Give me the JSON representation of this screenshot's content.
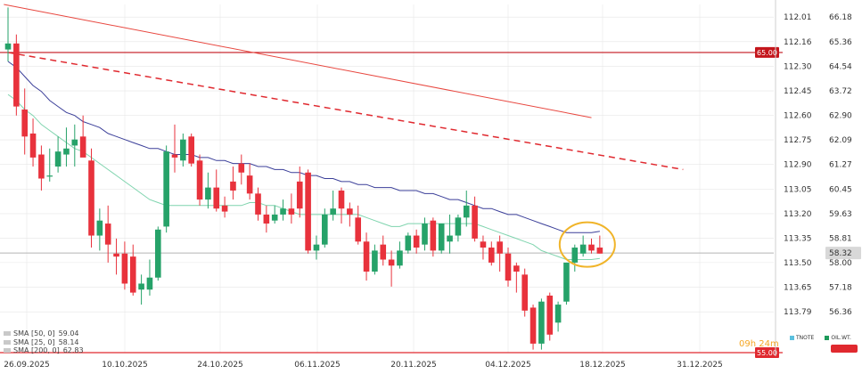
{
  "chart_data": {
    "type": "candlestick",
    "x_axis_ticks": [
      "26.09.2025",
      "10.10.2025",
      "24.10.2025",
      "06.11.2025",
      "20.11.2025",
      "04.12.2025",
      "18.12.2025",
      "31.12.2025"
    ],
    "right_axis_ticks": [
      "66.18",
      "65.36",
      "64.54",
      "63.72",
      "62.90",
      "62.09",
      "61.27",
      "60.45",
      "59.63",
      "58.81",
      "58.00",
      "57.18",
      "56.36"
    ],
    "left_axis_ticks": [
      "112.01",
      "112.16",
      "112.30",
      "112.45",
      "112.60",
      "112.75",
      "112.90",
      "113.05",
      "113.20",
      "113.35",
      "113.50",
      "113.65",
      "113.79"
    ],
    "price_range": [
      55.0,
      66.6
    ],
    "candles": [
      {
        "o": 65.1,
        "h": 66.5,
        "l": 64.7,
        "c": 65.3
      },
      {
        "o": 65.3,
        "h": 65.6,
        "l": 62.9,
        "c": 63.2
      },
      {
        "o": 63.1,
        "h": 63.8,
        "l": 61.6,
        "c": 62.2
      },
      {
        "o": 62.3,
        "h": 62.8,
        "l": 61.2,
        "c": 61.5
      },
      {
        "o": 61.6,
        "h": 61.9,
        "l": 60.4,
        "c": 60.8
      },
      {
        "o": 60.9,
        "h": 61.8,
        "l": 60.7,
        "c": 60.9
      },
      {
        "o": 61.2,
        "h": 62.2,
        "l": 61.0,
        "c": 61.7
      },
      {
        "o": 61.6,
        "h": 62.5,
        "l": 61.2,
        "c": 61.8
      },
      {
        "o": 61.9,
        "h": 62.6,
        "l": 61.2,
        "c": 62.1
      },
      {
        "o": 62.2,
        "h": 62.9,
        "l": 61.6,
        "c": 61.5
      },
      {
        "o": 61.4,
        "h": 61.8,
        "l": 58.5,
        "c": 58.9
      },
      {
        "o": 58.9,
        "h": 59.8,
        "l": 58.4,
        "c": 59.4
      },
      {
        "o": 59.3,
        "h": 59.9,
        "l": 58.0,
        "c": 58.6
      },
      {
        "o": 58.3,
        "h": 58.8,
        "l": 57.6,
        "c": 58.2
      },
      {
        "o": 58.3,
        "h": 58.7,
        "l": 57.1,
        "c": 57.3
      },
      {
        "o": 58.2,
        "h": 58.6,
        "l": 56.9,
        "c": 57.0
      },
      {
        "o": 57.1,
        "h": 57.6,
        "l": 56.6,
        "c": 57.3
      },
      {
        "o": 57.1,
        "h": 58.1,
        "l": 56.9,
        "c": 57.5
      },
      {
        "o": 57.5,
        "h": 59.2,
        "l": 57.4,
        "c": 59.1
      },
      {
        "o": 59.2,
        "h": 61.9,
        "l": 59.0,
        "c": 61.7
      },
      {
        "o": 61.6,
        "h": 62.6,
        "l": 61.0,
        "c": 61.5
      },
      {
        "o": 61.4,
        "h": 62.3,
        "l": 61.2,
        "c": 62.1
      },
      {
        "o": 62.2,
        "h": 62.3,
        "l": 61.2,
        "c": 61.3
      },
      {
        "o": 61.4,
        "h": 61.6,
        "l": 59.9,
        "c": 60.1
      },
      {
        "o": 60.1,
        "h": 61.0,
        "l": 59.8,
        "c": 60.5
      },
      {
        "o": 60.5,
        "h": 61.1,
        "l": 59.7,
        "c": 59.8
      },
      {
        "o": 59.9,
        "h": 60.2,
        "l": 59.5,
        "c": 59.7
      },
      {
        "o": 60.7,
        "h": 61.2,
        "l": 60.1,
        "c": 60.4
      },
      {
        "o": 61.3,
        "h": 61.6,
        "l": 60.6,
        "c": 61.0
      },
      {
        "o": 60.9,
        "h": 61.3,
        "l": 60.1,
        "c": 60.3
      },
      {
        "o": 60.3,
        "h": 60.5,
        "l": 59.4,
        "c": 59.6
      },
      {
        "o": 59.6,
        "h": 59.9,
        "l": 59.0,
        "c": 59.3
      },
      {
        "o": 59.4,
        "h": 59.9,
        "l": 59.3,
        "c": 59.6
      },
      {
        "o": 59.6,
        "h": 60.1,
        "l": 59.4,
        "c": 59.8
      },
      {
        "o": 59.8,
        "h": 60.3,
        "l": 59.3,
        "c": 59.6
      },
      {
        "o": 60.7,
        "h": 61.2,
        "l": 59.5,
        "c": 59.8
      },
      {
        "o": 61.0,
        "h": 61.1,
        "l": 58.3,
        "c": 58.4
      },
      {
        "o": 58.4,
        "h": 58.9,
        "l": 58.1,
        "c": 58.6
      },
      {
        "o": 58.6,
        "h": 59.8,
        "l": 58.5,
        "c": 59.6
      },
      {
        "o": 59.6,
        "h": 60.4,
        "l": 59.4,
        "c": 59.8
      },
      {
        "o": 60.4,
        "h": 60.5,
        "l": 59.3,
        "c": 59.8
      },
      {
        "o": 59.8,
        "h": 60.0,
        "l": 59.2,
        "c": 59.6
      },
      {
        "o": 59.5,
        "h": 59.9,
        "l": 58.6,
        "c": 58.7
      },
      {
        "o": 58.7,
        "h": 59.0,
        "l": 57.4,
        "c": 57.7
      },
      {
        "o": 57.7,
        "h": 58.6,
        "l": 57.6,
        "c": 58.4
      },
      {
        "o": 58.6,
        "h": 58.9,
        "l": 57.9,
        "c": 58.1
      },
      {
        "o": 58.1,
        "h": 58.4,
        "l": 57.2,
        "c": 57.9
      },
      {
        "o": 57.9,
        "h": 58.7,
        "l": 57.8,
        "c": 58.4
      },
      {
        "o": 58.4,
        "h": 59.0,
        "l": 58.3,
        "c": 58.9
      },
      {
        "o": 58.9,
        "h": 59.1,
        "l": 58.3,
        "c": 58.5
      },
      {
        "o": 58.6,
        "h": 59.5,
        "l": 58.4,
        "c": 59.3
      },
      {
        "o": 59.4,
        "h": 59.5,
        "l": 58.2,
        "c": 58.4
      },
      {
        "o": 58.4,
        "h": 59.3,
        "l": 58.3,
        "c": 59.3
      },
      {
        "o": 58.7,
        "h": 59.6,
        "l": 58.3,
        "c": 58.9
      },
      {
        "o": 58.9,
        "h": 59.6,
        "l": 58.7,
        "c": 59.5
      },
      {
        "o": 59.5,
        "h": 60.4,
        "l": 59.2,
        "c": 59.9
      },
      {
        "o": 59.9,
        "h": 60.2,
        "l": 58.7,
        "c": 58.8
      },
      {
        "o": 58.7,
        "h": 58.9,
        "l": 58.1,
        "c": 58.5
      },
      {
        "o": 58.5,
        "h": 58.7,
        "l": 57.9,
        "c": 58.0
      },
      {
        "o": 58.7,
        "h": 58.9,
        "l": 57.7,
        "c": 58.3
      },
      {
        "o": 58.3,
        "h": 58.5,
        "l": 57.2,
        "c": 57.4
      },
      {
        "o": 57.9,
        "h": 58.0,
        "l": 57.0,
        "c": 57.7
      },
      {
        "o": 57.6,
        "h": 57.8,
        "l": 56.2,
        "c": 56.4
      },
      {
        "o": 56.5,
        "h": 56.6,
        "l": 55.1,
        "c": 55.3
      },
      {
        "o": 55.3,
        "h": 56.8,
        "l": 55.1,
        "c": 56.7
      },
      {
        "o": 56.9,
        "h": 57.0,
        "l": 55.4,
        "c": 55.6
      },
      {
        "o": 56.0,
        "h": 56.7,
        "l": 55.7,
        "c": 56.6
      },
      {
        "o": 56.7,
        "h": 58.0,
        "l": 56.6,
        "c": 58.0
      },
      {
        "o": 58.0,
        "h": 58.6,
        "l": 57.7,
        "c": 58.5
      },
      {
        "o": 58.3,
        "h": 58.9,
        "l": 58.2,
        "c": 58.6
      },
      {
        "o": 58.6,
        "h": 58.8,
        "l": 58.3,
        "c": 58.4
      },
      {
        "o": 58.5,
        "h": 58.9,
        "l": 58.3,
        "c": 58.3
      }
    ],
    "current_price": 58.32,
    "horizontal_levels": [
      {
        "value": 65.0,
        "label": "65.00",
        "color": "#c4161c"
      },
      {
        "value": 55.0,
        "label": "55.00",
        "color": "#e0292f"
      }
    ],
    "series": [
      {
        "name": "SMA [50, 0]",
        "value_label": "59.04",
        "color": "#3b3f99",
        "values": [
          64.7,
          64.5,
          64.2,
          63.9,
          63.7,
          63.4,
          63.2,
          63.0,
          62.9,
          62.7,
          62.6,
          62.5,
          62.3,
          62.2,
          62.1,
          62.0,
          61.9,
          61.8,
          61.8,
          61.7,
          61.6,
          61.6,
          61.6,
          61.5,
          61.5,
          61.4,
          61.4,
          61.3,
          61.3,
          61.3,
          61.2,
          61.2,
          61.1,
          61.1,
          61.0,
          61.0,
          60.9,
          60.9,
          60.8,
          60.8,
          60.7,
          60.7,
          60.6,
          60.6,
          60.5,
          60.5,
          60.5,
          60.4,
          60.4,
          60.4,
          60.3,
          60.3,
          60.2,
          60.1,
          60.1,
          60.0,
          59.9,
          59.8,
          59.8,
          59.7,
          59.6,
          59.6,
          59.5,
          59.4,
          59.3,
          59.2,
          59.1,
          59.0,
          59.0,
          59.0,
          59.0,
          59.04
        ]
      },
      {
        "name": "SMA [25, 0]",
        "value_label": "58.14",
        "color": "#7fd4ae",
        "values": [
          63.6,
          63.4,
          63.1,
          62.9,
          62.6,
          62.4,
          62.2,
          62.0,
          61.8,
          61.7,
          61.5,
          61.3,
          61.1,
          60.9,
          60.7,
          60.5,
          60.3,
          60.1,
          60.0,
          59.9,
          59.9,
          59.9,
          59.9,
          59.9,
          59.9,
          59.9,
          59.9,
          59.9,
          59.9,
          60.0,
          60.0,
          59.9,
          59.9,
          59.8,
          59.7,
          59.6,
          59.6,
          59.6,
          59.6,
          59.6,
          59.6,
          59.6,
          59.6,
          59.5,
          59.4,
          59.3,
          59.2,
          59.2,
          59.3,
          59.3,
          59.3,
          59.3,
          59.3,
          59.3,
          59.3,
          59.3,
          59.3,
          59.2,
          59.1,
          59.0,
          58.9,
          58.8,
          58.7,
          58.6,
          58.4,
          58.3,
          58.2,
          58.1,
          58.1,
          58.1,
          58.1,
          58.14
        ]
      },
      {
        "name": "SMA [200, 0]",
        "value_label": "62.83",
        "color": "#e8473f"
      }
    ],
    "sma200_points": [
      [
        -0.5,
        66.6
      ],
      [
        70,
        62.83
      ]
    ],
    "trendline": {
      "start": [
        0,
        65.0
      ],
      "end": [
        81,
        61.1
      ],
      "color": "#e0292f",
      "style": "dashed"
    },
    "highlight_ellipse": {
      "center_index": 69.5,
      "center_price": 58.6,
      "color": "#f0b429"
    },
    "timer_text": "09h 24m",
    "instruments": [
      {
        "label": "TNOTE",
        "color": "#5bc0de"
      },
      {
        "label": "OIL.WT.",
        "color": "#1e9a5a"
      }
    ],
    "colors": {
      "up": "#26a269",
      "down": "#e8323c",
      "grid": "#e6e6e6",
      "price_line": "#b5b5b5"
    },
    "grid": true
  }
}
